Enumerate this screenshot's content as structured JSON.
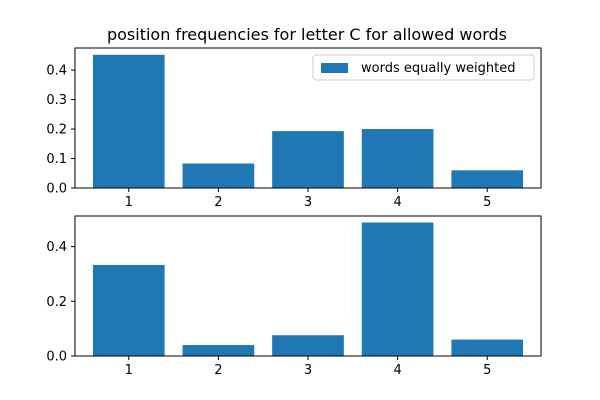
{
  "chart_data": [
    {
      "type": "bar",
      "title": "position frequencies for letter C for allowed words",
      "categories": [
        "1",
        "2",
        "3",
        "4",
        "5"
      ],
      "series": [
        {
          "name": "words equally weighted",
          "values": [
            0.452,
            0.083,
            0.193,
            0.2,
            0.06
          ]
        }
      ],
      "ylim": [
        0,
        0.475
      ],
      "yticks": [
        0.0,
        0.1,
        0.2,
        0.3,
        0.4
      ],
      "ytick_labels": [
        "0.0",
        "0.1",
        "0.2",
        "0.3",
        "0.4"
      ],
      "legend": "top-right",
      "grid": false,
      "color": "#1f77b4"
    },
    {
      "type": "bar",
      "title": "",
      "categories": [
        "1",
        "2",
        "3",
        "4",
        "5"
      ],
      "series": [
        {
          "values": [
            0.333,
            0.04,
            0.076,
            0.488,
            0.06
          ]
        }
      ],
      "ylim": [
        0,
        0.512
      ],
      "yticks": [
        0.0,
        0.2,
        0.4
      ],
      "ytick_labels": [
        "0.0",
        "0.2",
        "0.4"
      ],
      "grid": false,
      "color": "#1f77b4"
    }
  ]
}
